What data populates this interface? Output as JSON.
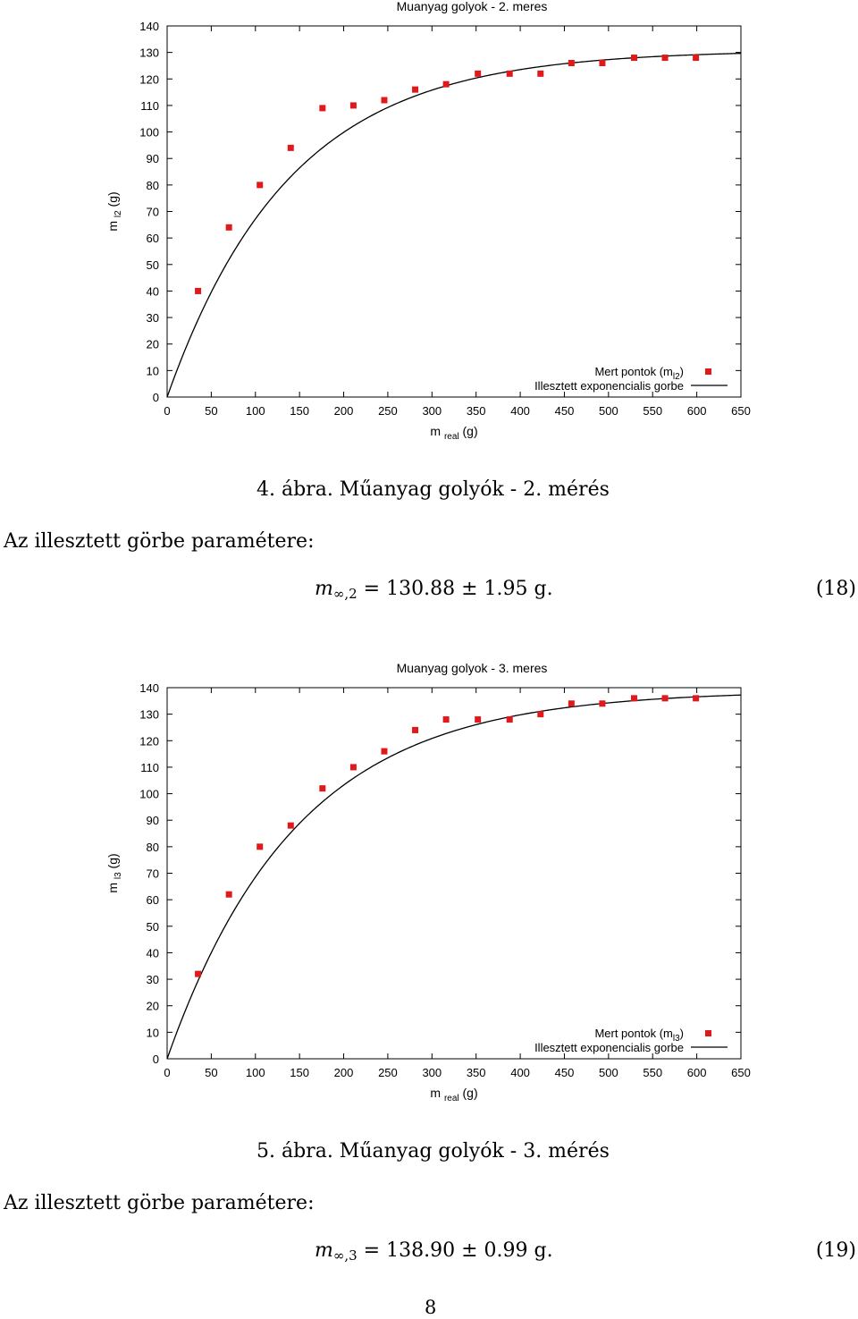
{
  "chart_data": [
    {
      "type": "scatter",
      "title": "Muanyag golyok - 2. meres",
      "xlabel_main": "m",
      "xlabel_sub": "real",
      "xlabel_unit": "(g)",
      "ylabel_main": "m",
      "ylabel_sub": "l2",
      "ylabel_unit": "(g)",
      "xlim": [
        0,
        650
      ],
      "ylim": [
        0,
        140
      ],
      "xticks": [
        "0",
        "50",
        "100",
        "150",
        "200",
        "250",
        "300",
        "350",
        "400",
        "450",
        "500",
        "550",
        "600",
        "650"
      ],
      "yticks": [
        "0",
        "10",
        "20",
        "30",
        "40",
        "50",
        "60",
        "70",
        "80",
        "90",
        "100",
        "110",
        "120",
        "130",
        "140"
      ],
      "grid": false,
      "legend_position": "bottom-right",
      "series": [
        {
          "name_main": "Mert pontok (m",
          "name_sub": "l2",
          "name_end": ")",
          "kind": "points",
          "color": "#e0191a",
          "x": [
            35,
            70,
            105,
            140,
            176,
            211,
            246,
            281,
            316,
            352,
            388,
            423,
            458,
            493,
            529,
            564,
            599
          ],
          "y": [
            40,
            64,
            80,
            94,
            109,
            110,
            112,
            116,
            118,
            122,
            122,
            122,
            126,
            126,
            128,
            128,
            128
          ]
        },
        {
          "name": "Illesztett exponencialis gorbe",
          "kind": "curve",
          "color": "#000000",
          "function": "exp_saturation",
          "a": 130.88,
          "k": 0.0072
        }
      ]
    },
    {
      "type": "scatter",
      "title": "Muanyag golyok - 3. meres",
      "xlabel_main": "m",
      "xlabel_sub": "real",
      "xlabel_unit": "(g)",
      "ylabel_main": "m",
      "ylabel_sub": "l3",
      "ylabel_unit": "(g)",
      "xlim": [
        0,
        650
      ],
      "ylim": [
        0,
        140
      ],
      "xticks": [
        "0",
        "50",
        "100",
        "150",
        "200",
        "250",
        "300",
        "350",
        "400",
        "450",
        "500",
        "550",
        "600",
        "650"
      ],
      "yticks": [
        "0",
        "10",
        "20",
        "30",
        "40",
        "50",
        "60",
        "70",
        "80",
        "90",
        "100",
        "110",
        "120",
        "130",
        "140"
      ],
      "grid": false,
      "legend_position": "bottom-right",
      "series": [
        {
          "name_main": "Mert pontok (m",
          "name_sub": "l3",
          "name_end": ")",
          "kind": "points",
          "color": "#e0191a",
          "x": [
            35,
            70,
            105,
            140,
            176,
            211,
            246,
            281,
            316,
            352,
            388,
            423,
            458,
            493,
            529,
            564,
            599
          ],
          "y": [
            32,
            62,
            80,
            88,
            102,
            110,
            116,
            124,
            128,
            128,
            128,
            130,
            134,
            134,
            136,
            136,
            136
          ]
        },
        {
          "name": "Illesztett exponencialis gorbe",
          "kind": "curve",
          "color": "#000000",
          "function": "exp_saturation",
          "a": 138.9,
          "k": 0.0068
        }
      ]
    }
  ],
  "figure4": {
    "caption": "4. ábra. Műanyag golyók - 2. mérés",
    "param_text": "Az illesztett görbe paramétere:",
    "equation_main": "m",
    "equation_sub": "∞,2",
    "equation_rest": " = 130.88 ± 1.95 g.",
    "equation_number": "(18)"
  },
  "figure5": {
    "caption": "5. ábra. Műanyag golyók - 3. mérés",
    "param_text": "Az illesztett görbe paramétere:",
    "equation_main": "m",
    "equation_sub": "∞,3",
    "equation_rest": " = 138.90 ± 0.99 g.",
    "equation_number": "(19)"
  },
  "page_number": "8"
}
